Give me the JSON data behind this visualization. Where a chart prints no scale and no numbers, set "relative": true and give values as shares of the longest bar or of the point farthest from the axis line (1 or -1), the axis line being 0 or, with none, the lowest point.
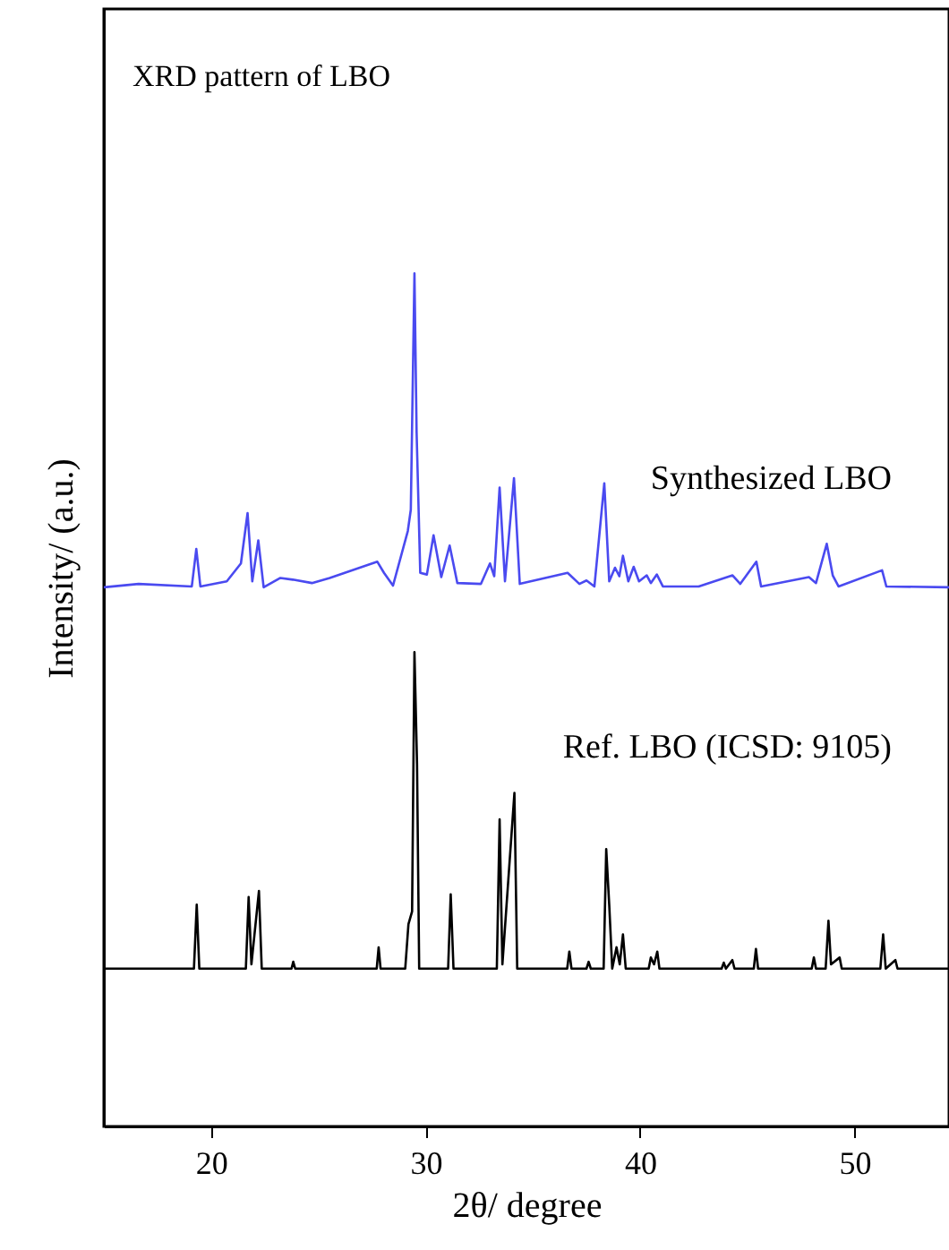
{
  "chart_data": {
    "type": "line",
    "relative": true,
    "xlabel": "2θ/ degree",
    "ylabel": "Intensity/ (a.u.)",
    "annotations": [
      "XRD pattern of LBO"
    ],
    "xlim": [
      15,
      54.4
    ],
    "xticks": [
      20,
      30,
      40,
      50
    ],
    "grid": false,
    "line_style": "solid",
    "marker": "none",
    "series": [
      {
        "name": "Synthesized LBO",
        "color": "#4a4af0",
        "x": [
          15,
          16.62,
          19.1,
          19.31,
          19.5,
          20.73,
          21.39,
          21.7,
          21.92,
          22.2,
          22.45,
          23.23,
          23.81,
          24.7,
          25.53,
          27.75,
          28.06,
          28.48,
          29.17,
          29.31,
          29.48,
          29.58,
          29.75,
          30.06,
          30.37,
          30.73,
          31.12,
          31.48,
          32.58,
          33.0,
          33.2,
          33.45,
          33.7,
          34.12,
          34.39,
          36.62,
          37.17,
          37.5,
          37.87,
          38.33,
          38.56,
          38.83,
          39.03,
          39.2,
          39.45,
          39.7,
          39.95,
          40.31,
          40.5,
          40.78,
          41.06,
          42.73,
          44.31,
          44.67,
          45.42,
          45.64,
          47.87,
          48.2,
          48.7,
          48.98,
          49.25,
          51.28,
          51.48,
          54.4
        ],
        "values": [
          0.632,
          0.636,
          0.633,
          0.677,
          0.633,
          0.639,
          0.66,
          0.719,
          0.639,
          0.687,
          0.632,
          0.643,
          0.641,
          0.637,
          0.643,
          0.662,
          0.649,
          0.634,
          0.698,
          0.723,
          1.0,
          0.814,
          0.649,
          0.647,
          0.693,
          0.644,
          0.681,
          0.637,
          0.636,
          0.66,
          0.645,
          0.749,
          0.639,
          0.76,
          0.636,
          0.649,
          0.636,
          0.64,
          0.633,
          0.754,
          0.639,
          0.655,
          0.645,
          0.669,
          0.639,
          0.656,
          0.639,
          0.646,
          0.637,
          0.647,
          0.633,
          0.633,
          0.646,
          0.636,
          0.662,
          0.633,
          0.644,
          0.637,
          0.683,
          0.646,
          0.633,
          0.652,
          0.633,
          0.632
        ]
      },
      {
        "name": "Ref. LBO (ICSD: 9105)",
        "color": "#000000",
        "x": [
          15,
          19.2,
          19.33,
          19.45,
          21.62,
          21.75,
          21.88,
          22.23,
          22.36,
          23.75,
          23.83,
          23.92,
          27.72,
          27.81,
          27.9,
          29.05,
          29.2,
          29.37,
          29.48,
          29.6,
          29.7,
          31.05,
          31.17,
          31.3,
          33.32,
          33.45,
          33.58,
          34.14,
          34.27,
          36.6,
          36.7,
          36.8,
          37.5,
          37.6,
          37.7,
          38.3,
          38.42,
          38.56,
          38.7,
          38.9,
          39.05,
          39.2,
          39.33,
          40.4,
          40.5,
          40.65,
          40.8,
          40.9,
          43.8,
          43.9,
          44.0,
          44.3,
          44.4,
          45.3,
          45.4,
          45.5,
          48.0,
          48.1,
          48.2,
          48.65,
          48.78,
          48.9,
          49.3,
          49.4,
          51.2,
          51.33,
          51.45,
          51.9,
          52.0,
          54.4
        ],
        "values": [
          0.185,
          0.185,
          0.26,
          0.185,
          0.185,
          0.269,
          0.19,
          0.276,
          0.185,
          0.185,
          0.193,
          0.185,
          0.185,
          0.21,
          0.185,
          0.185,
          0.237,
          0.252,
          0.556,
          0.425,
          0.185,
          0.185,
          0.272,
          0.185,
          0.185,
          0.36,
          0.19,
          0.391,
          0.185,
          0.185,
          0.205,
          0.185,
          0.185,
          0.193,
          0.185,
          0.185,
          0.325,
          0.26,
          0.185,
          0.21,
          0.19,
          0.225,
          0.185,
          0.185,
          0.198,
          0.19,
          0.205,
          0.185,
          0.185,
          0.192,
          0.185,
          0.195,
          0.185,
          0.185,
          0.208,
          0.185,
          0.185,
          0.198,
          0.185,
          0.185,
          0.241,
          0.19,
          0.198,
          0.185,
          0.185,
          0.225,
          0.185,
          0.195,
          0.185,
          0.185
        ]
      }
    ]
  }
}
